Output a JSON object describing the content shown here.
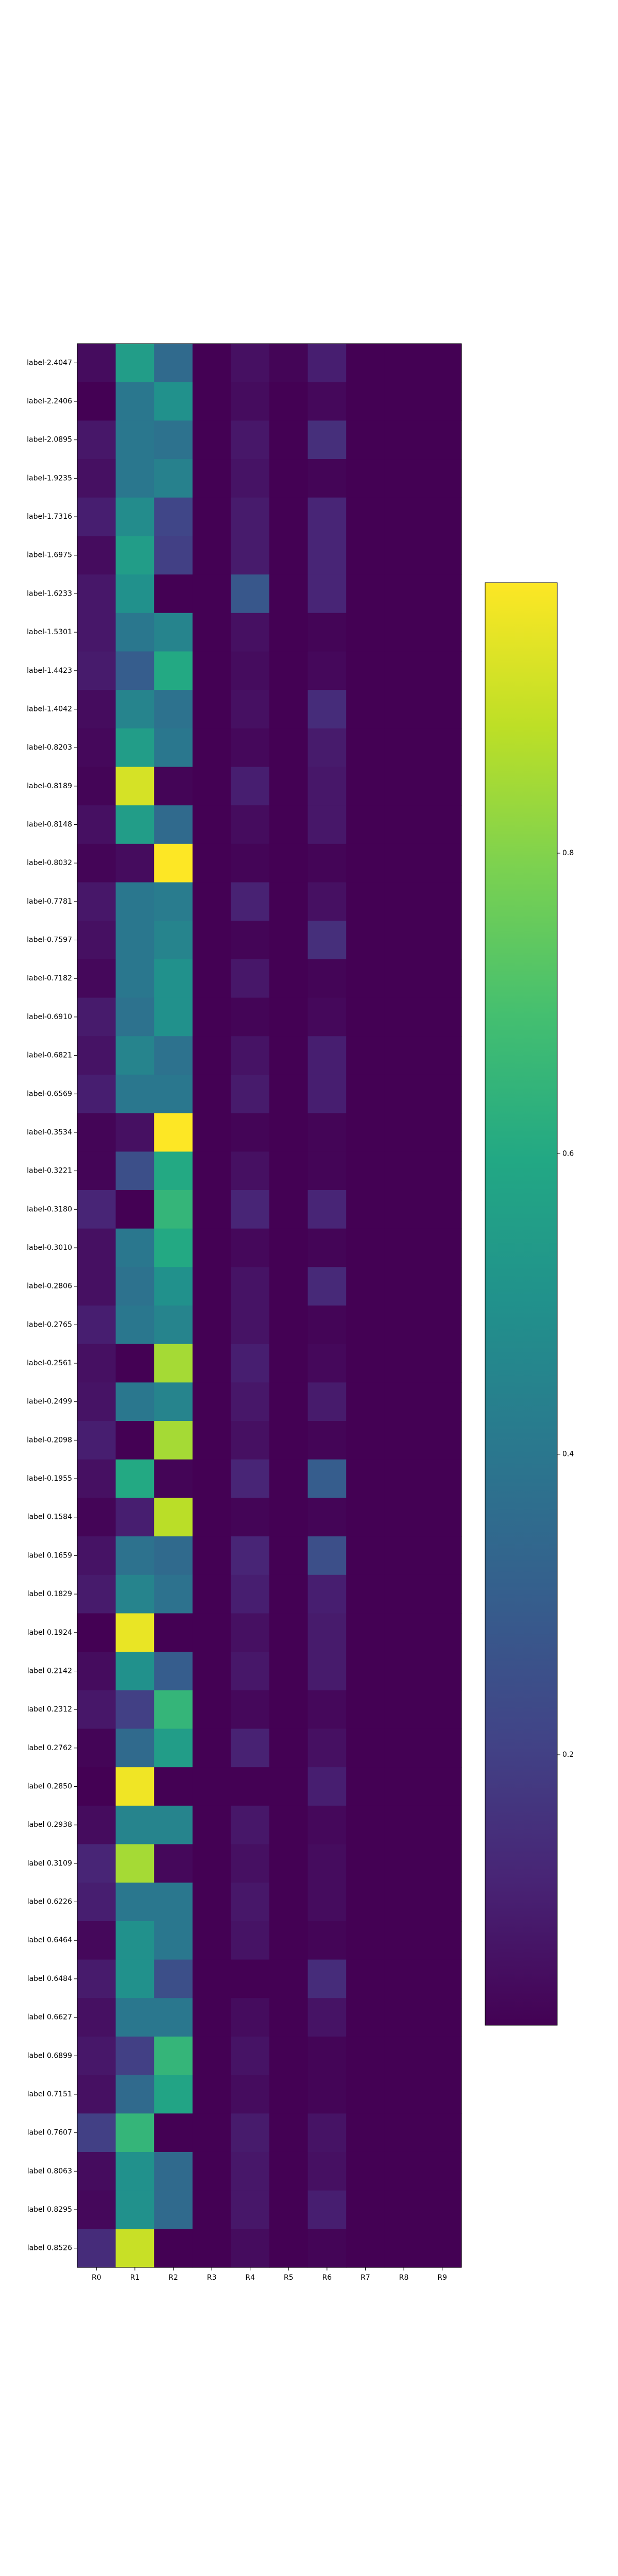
{
  "chart_data": {
    "type": "heatmap",
    "colormap": "viridis",
    "columns": [
      "R0",
      "R1",
      "R2",
      "R3",
      "R4",
      "R5",
      "R6",
      "R7",
      "R8",
      "R9"
    ],
    "rows": [
      "label-2.4047",
      "label-2.2406",
      "label-2.0895",
      "label-1.9235",
      "label-1.7316",
      "label-1.6975",
      "label-1.6233",
      "label-1.5301",
      "label-1.4423",
      "label-1.4042",
      "label-0.8203",
      "label-0.8189",
      "label-0.8148",
      "label-0.8032",
      "label-0.7781",
      "label-0.7597",
      "label-0.7182",
      "label-0.6910",
      "label-0.6821",
      "label-0.6569",
      "label-0.3534",
      "label-0.3221",
      "label-0.3180",
      "label-0.3010",
      "label-0.2806",
      "label-0.2765",
      "label-0.2561",
      "label-0.2499",
      "label-0.2098",
      "label-0.1955",
      "label 0.1584",
      "label 0.1659",
      "label 0.1829",
      "label 0.1924",
      "label 0.2142",
      "label 0.2312",
      "label 0.2762",
      "label 0.2850",
      "label 0.2938",
      "label 0.3109",
      "label 0.6226",
      "label 0.6464",
      "label 0.6484",
      "label 0.6627",
      "label 0.6899",
      "label 0.7151",
      "label 0.7607",
      "label 0.8063",
      "label 0.8295",
      "label 0.8526"
    ],
    "values": [
      [
        0.05,
        0.55,
        0.35,
        0.02,
        0.06,
        0.03,
        0.1,
        0.02,
        0.02,
        0.02
      ],
      [
        0.02,
        0.4,
        0.5,
        0.02,
        0.05,
        0.02,
        0.04,
        0.02,
        0.02,
        0.02
      ],
      [
        0.08,
        0.4,
        0.38,
        0.02,
        0.08,
        0.02,
        0.15,
        0.02,
        0.02,
        0.02
      ],
      [
        0.06,
        0.4,
        0.44,
        0.02,
        0.07,
        0.02,
        0.03,
        0.02,
        0.02,
        0.02
      ],
      [
        0.1,
        0.48,
        0.22,
        0.02,
        0.09,
        0.02,
        0.12,
        0.02,
        0.02,
        0.02
      ],
      [
        0.05,
        0.55,
        0.2,
        0.02,
        0.09,
        0.02,
        0.12,
        0.02,
        0.02,
        0.02
      ],
      [
        0.08,
        0.5,
        0.02,
        0.02,
        0.28,
        0.02,
        0.12,
        0.02,
        0.02,
        0.02
      ],
      [
        0.08,
        0.4,
        0.45,
        0.02,
        0.06,
        0.02,
        0.03,
        0.02,
        0.02,
        0.02
      ],
      [
        0.09,
        0.3,
        0.6,
        0.02,
        0.05,
        0.02,
        0.04,
        0.02,
        0.02,
        0.02
      ],
      [
        0.05,
        0.45,
        0.38,
        0.02,
        0.06,
        0.02,
        0.14,
        0.02,
        0.02,
        0.02
      ],
      [
        0.04,
        0.55,
        0.4,
        0.02,
        0.04,
        0.02,
        0.09,
        0.02,
        0.02,
        0.02
      ],
      [
        0.03,
        0.92,
        0.03,
        0.02,
        0.1,
        0.02,
        0.08,
        0.02,
        0.02,
        0.02
      ],
      [
        0.06,
        0.55,
        0.35,
        0.02,
        0.05,
        0.02,
        0.08,
        0.02,
        0.02,
        0.02
      ],
      [
        0.03,
        0.05,
        0.98,
        0.02,
        0.03,
        0.02,
        0.03,
        0.02,
        0.02,
        0.02
      ],
      [
        0.08,
        0.4,
        0.42,
        0.02,
        0.11,
        0.02,
        0.06,
        0.02,
        0.02,
        0.02
      ],
      [
        0.06,
        0.4,
        0.45,
        0.02,
        0.03,
        0.02,
        0.15,
        0.02,
        0.02,
        0.02
      ],
      [
        0.04,
        0.4,
        0.5,
        0.02,
        0.08,
        0.02,
        0.03,
        0.02,
        0.02,
        0.02
      ],
      [
        0.09,
        0.38,
        0.5,
        0.02,
        0.03,
        0.02,
        0.04,
        0.02,
        0.02,
        0.02
      ],
      [
        0.07,
        0.45,
        0.38,
        0.02,
        0.07,
        0.02,
        0.1,
        0.02,
        0.02,
        0.02
      ],
      [
        0.1,
        0.4,
        0.4,
        0.02,
        0.09,
        0.02,
        0.1,
        0.02,
        0.02,
        0.02
      ],
      [
        0.03,
        0.06,
        0.98,
        0.02,
        0.03,
        0.02,
        0.03,
        0.02,
        0.02,
        0.02
      ],
      [
        0.03,
        0.25,
        0.6,
        0.02,
        0.06,
        0.02,
        0.03,
        0.02,
        0.02,
        0.02
      ],
      [
        0.12,
        0.02,
        0.65,
        0.02,
        0.12,
        0.02,
        0.12,
        0.02,
        0.02,
        0.02
      ],
      [
        0.06,
        0.4,
        0.6,
        0.02,
        0.04,
        0.02,
        0.03,
        0.02,
        0.02,
        0.02
      ],
      [
        0.06,
        0.38,
        0.5,
        0.02,
        0.07,
        0.02,
        0.13,
        0.02,
        0.02,
        0.02
      ],
      [
        0.1,
        0.4,
        0.45,
        0.02,
        0.07,
        0.02,
        0.03,
        0.02,
        0.02,
        0.02
      ],
      [
        0.06,
        0.02,
        0.85,
        0.02,
        0.1,
        0.02,
        0.04,
        0.02,
        0.02,
        0.02
      ],
      [
        0.07,
        0.4,
        0.45,
        0.02,
        0.08,
        0.02,
        0.09,
        0.02,
        0.02,
        0.02
      ],
      [
        0.1,
        0.02,
        0.85,
        0.02,
        0.06,
        0.02,
        0.03,
        0.02,
        0.02,
        0.02
      ],
      [
        0.06,
        0.6,
        0.03,
        0.02,
        0.12,
        0.02,
        0.3,
        0.02,
        0.02,
        0.02
      ],
      [
        0.03,
        0.1,
        0.88,
        0.02,
        0.03,
        0.02,
        0.03,
        0.02,
        0.02,
        0.02
      ],
      [
        0.07,
        0.38,
        0.35,
        0.02,
        0.12,
        0.02,
        0.25,
        0.02,
        0.02,
        0.02
      ],
      [
        0.09,
        0.45,
        0.38,
        0.02,
        0.1,
        0.02,
        0.1,
        0.02,
        0.02,
        0.02
      ],
      [
        0.02,
        0.95,
        0.02,
        0.02,
        0.06,
        0.02,
        0.09,
        0.02,
        0.02,
        0.02
      ],
      [
        0.05,
        0.5,
        0.3,
        0.02,
        0.08,
        0.02,
        0.09,
        0.02,
        0.02,
        0.02
      ],
      [
        0.08,
        0.2,
        0.65,
        0.02,
        0.04,
        0.02,
        0.04,
        0.02,
        0.02,
        0.02
      ],
      [
        0.03,
        0.35,
        0.55,
        0.02,
        0.11,
        0.02,
        0.06,
        0.02,
        0.02,
        0.02
      ],
      [
        0.02,
        0.96,
        0.02,
        0.02,
        0.02,
        0.02,
        0.1,
        0.02,
        0.02,
        0.02
      ],
      [
        0.05,
        0.45,
        0.45,
        0.02,
        0.08,
        0.02,
        0.04,
        0.02,
        0.02,
        0.02
      ],
      [
        0.12,
        0.85,
        0.04,
        0.02,
        0.06,
        0.02,
        0.05,
        0.02,
        0.02,
        0.02
      ],
      [
        0.1,
        0.4,
        0.4,
        0.02,
        0.08,
        0.02,
        0.05,
        0.02,
        0.02,
        0.02
      ],
      [
        0.04,
        0.5,
        0.4,
        0.02,
        0.07,
        0.02,
        0.03,
        0.02,
        0.02,
        0.02
      ],
      [
        0.09,
        0.5,
        0.25,
        0.02,
        0.02,
        0.02,
        0.14,
        0.02,
        0.02,
        0.02
      ],
      [
        0.06,
        0.4,
        0.4,
        0.02,
        0.05,
        0.02,
        0.07,
        0.02,
        0.02,
        0.02
      ],
      [
        0.08,
        0.2,
        0.65,
        0.02,
        0.07,
        0.02,
        0.03,
        0.02,
        0.02,
        0.02
      ],
      [
        0.06,
        0.35,
        0.58,
        0.02,
        0.05,
        0.02,
        0.03,
        0.02,
        0.02,
        0.02
      ],
      [
        0.2,
        0.65,
        0.02,
        0.02,
        0.09,
        0.02,
        0.07,
        0.02,
        0.02,
        0.02
      ],
      [
        0.05,
        0.5,
        0.35,
        0.02,
        0.08,
        0.02,
        0.06,
        0.02,
        0.02,
        0.02
      ],
      [
        0.04,
        0.5,
        0.35,
        0.02,
        0.08,
        0.02,
        0.1,
        0.02,
        0.02,
        0.02
      ],
      [
        0.14,
        0.9,
        0.02,
        0.02,
        0.05,
        0.02,
        0.03,
        0.02,
        0.02,
        0.02
      ]
    ],
    "colorbar": {
      "min": 0.02,
      "max": 0.98,
      "ticks": [
        0.2,
        0.4,
        0.6,
        0.8
      ],
      "tick_labels": [
        "0.2",
        "0.4",
        "0.6",
        "0.8"
      ]
    }
  }
}
